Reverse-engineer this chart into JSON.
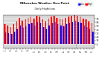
{
  "title": "Milwaukee Weather Dew Point",
  "subtitle": "Daily High/Low",
  "ylim": [
    -10,
    80
  ],
  "yticks": [
    0,
    10,
    20,
    30,
    40,
    50,
    60,
    70
  ],
  "ytick_labels": [
    "0",
    "10",
    "20",
    "30",
    "40",
    "50",
    "60",
    "70"
  ],
  "high_color": "#ff0000",
  "low_color": "#0000ff",
  "bg_color": "#ffffff",
  "plot_bg": "#d8d8d8",
  "grid_color": "#ffffff",
  "highs": [
    55,
    52,
    48,
    55,
    62,
    72,
    65,
    68,
    72,
    75,
    70,
    78,
    75,
    68,
    62,
    70,
    75,
    78,
    72,
    70,
    68,
    72,
    75,
    78,
    80,
    78,
    75,
    70,
    68,
    62,
    58
  ],
  "lows": [
    32,
    30,
    28,
    35,
    42,
    52,
    45,
    50,
    55,
    58,
    52,
    60,
    58,
    48,
    42,
    52,
    58,
    60,
    55,
    52,
    50,
    55,
    58,
    60,
    65,
    60,
    58,
    52,
    48,
    42,
    35
  ],
  "xlabels": [
    "1",
    "",
    "3",
    "",
    "5",
    "",
    "7",
    "",
    "9",
    "",
    "11",
    "",
    "13",
    "",
    "15",
    "",
    "17",
    "",
    "19",
    "",
    "21",
    "",
    "23",
    "",
    "25",
    "",
    "27",
    "",
    "29",
    "",
    "31"
  ],
  "n": 31,
  "bar_width": 0.35,
  "legend_low": "Low",
  "legend_high": "High",
  "vline_x": 24.5
}
